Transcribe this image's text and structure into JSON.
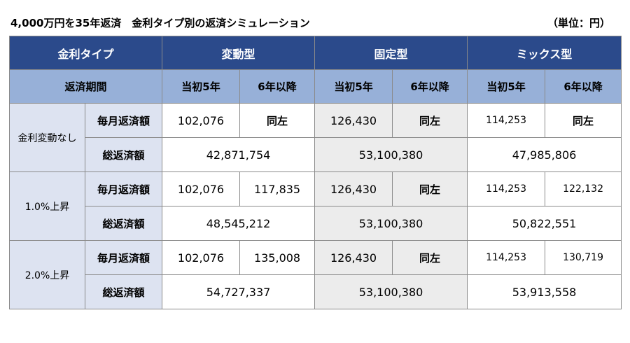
{
  "title": "4,000万円を35年返済　金利タイプ別の返済シミュレーション",
  "unit": "（単位：円）",
  "table": {
    "header_rate_type": "金利タイプ",
    "header_variable": "変動型",
    "header_fixed": "固定型",
    "header_mix": "ミックス型",
    "header_period": "返済期間",
    "sub_variable_initial": "当初5年",
    "sub_variable_after": "6年以降",
    "sub_fixed_initial": "当初5年",
    "sub_fixed_after": "6年以降",
    "sub_mix_initial": "当初5年",
    "sub_mix_after": "6年以降",
    "groups": [
      {
        "label": "金利変動なし",
        "monthly_label": "毎月返済額",
        "total_label": "総返済額",
        "variable_initial": "102,076",
        "variable_after": "同左",
        "fixed_initial": "126,430",
        "fixed_after": "同左",
        "mix_initial": "114,253",
        "mix_after": "同左",
        "variable_total": "42,871,754",
        "fixed_total": "53,100,380",
        "mix_total": "47,985,806"
      },
      {
        "label": "1.0%上昇",
        "monthly_label": "毎月返済額",
        "total_label": "総返済額",
        "variable_initial": "102,076",
        "variable_after": "117,835",
        "fixed_initial": "126,430",
        "fixed_after": "同左",
        "mix_initial": "114,253",
        "mix_after": "122,132",
        "variable_total": "48,545,212",
        "fixed_total": "53,100,380",
        "mix_total": "50,822,551"
      },
      {
        "label": "2.0%上昇",
        "monthly_label": "毎月返済額",
        "total_label": "総返済額",
        "variable_initial": "102,076",
        "variable_after": "135,008",
        "fixed_initial": "126,430",
        "fixed_after": "同左",
        "mix_initial": "114,253",
        "mix_after": "130,719",
        "variable_total": "54,727,337",
        "fixed_total": "53,100,380",
        "mix_total": "53,913,558"
      }
    ]
  },
  "colors": {
    "header_bg": "#2b4a8b",
    "subheader_bg": "#97b0d8",
    "rowlabel_bg": "#dde3f1",
    "fixed_col_bg": "#ececec",
    "border": "#8a8a8a"
  }
}
